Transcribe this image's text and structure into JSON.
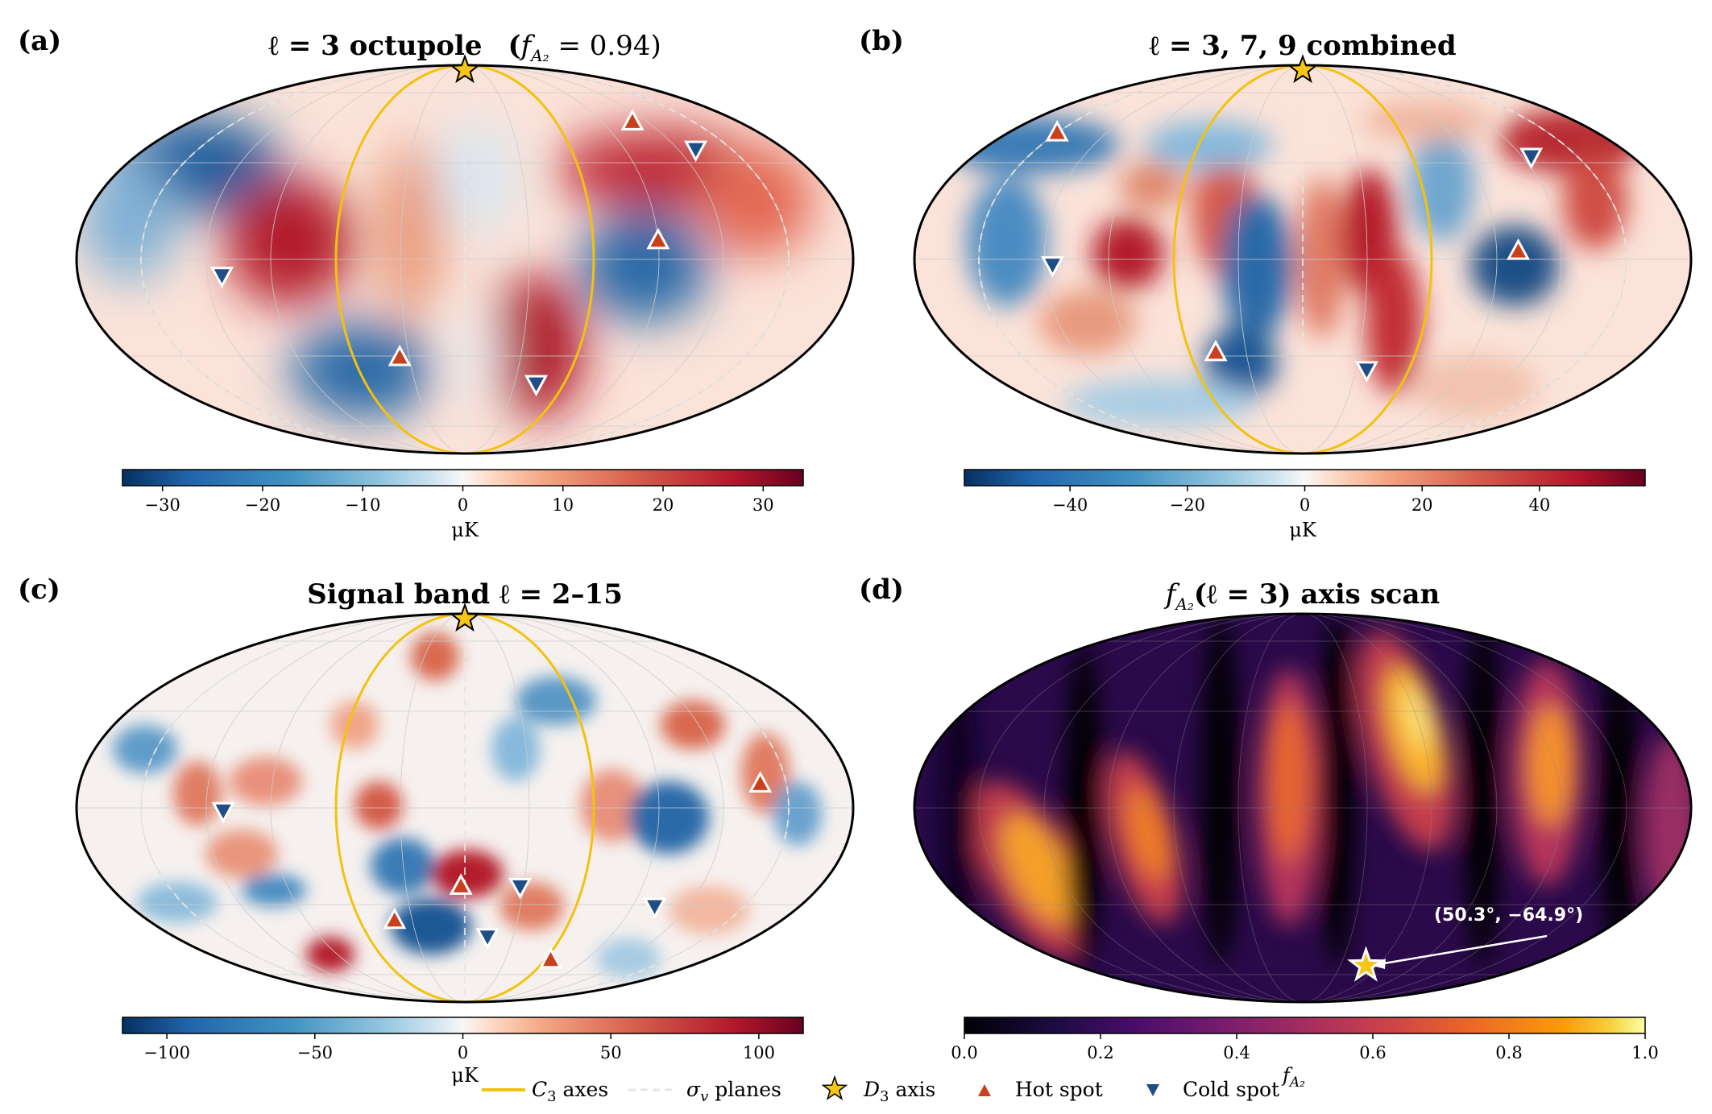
{
  "chart_data": [
    {
      "type": "heatmap",
      "panel": "(a)",
      "title": "ℓ = 3 octupole   (f_{A₂} = 0.94)",
      "title_parts": {
        "main": "ℓ = 3 octupole",
        "paren": "(",
        "f": "f",
        "sub": "A₂",
        "eq": " = 0.94)"
      },
      "projection": "mollweide",
      "colormap": "RdBu_r",
      "vmin": -34,
      "vmax": 34,
      "colorbar_ticks": [
        "−30",
        "−20",
        "−10",
        "0",
        "10",
        "20",
        "30"
      ],
      "colorbar_tick_values": [
        -30,
        -20,
        -10,
        0,
        10,
        20,
        30
      ],
      "colorbar_label": "μK",
      "hot_spots": [
        {
          "lon": 110,
          "lat": 55
        },
        {
          "lon": 90,
          "lat": 7
        },
        {
          "lon": -35,
          "lat": -38
        }
      ],
      "cold_spots": [
        {
          "lon": 130,
          "lat": 43
        },
        {
          "lon": -113,
          "lat": -6
        },
        {
          "lon": 43,
          "lat": -49
        }
      ]
    },
    {
      "type": "heatmap",
      "panel": "(b)",
      "title": "ℓ = 3, 7, 9 combined",
      "projection": "mollweide",
      "colormap": "RdBu_r",
      "vmin": -58,
      "vmax": 58,
      "colorbar_ticks": [
        "−40",
        "−20",
        "0",
        "20",
        "40"
      ],
      "colorbar_tick_values": [
        -40,
        -20,
        0,
        20,
        40
      ],
      "colorbar_label": "μK",
      "hot_spots": [
        {
          "lon": -150,
          "lat": 50
        },
        {
          "lon": 100,
          "lat": 3
        },
        {
          "lon": -46,
          "lat": -36
        }
      ],
      "cold_spots": [
        {
          "lon": 125,
          "lat": 40
        },
        {
          "lon": -116,
          "lat": -2
        },
        {
          "lon": 36,
          "lat": -43
        }
      ]
    },
    {
      "type": "heatmap",
      "panel": "(c)",
      "title": "Signal band ℓ = 2–15",
      "projection": "mollweide",
      "colormap": "RdBu_r",
      "vmin": -115,
      "vmax": 115,
      "colorbar_ticks": [
        "−100",
        "−50",
        "0",
        "50",
        "100"
      ],
      "colorbar_tick_values": [
        -100,
        -50,
        0,
        50,
        100
      ],
      "colorbar_label": "μK",
      "hot_spots": [
        {
          "lon": 138,
          "lat": 9
        },
        {
          "lon": -2,
          "lat": -30
        },
        {
          "lon": -40,
          "lat": -44
        },
        {
          "lon": 64,
          "lat": -62
        }
      ],
      "cold_spots": [
        {
          "lon": -112,
          "lat": -1
        },
        {
          "lon": 102,
          "lat": -38
        },
        {
          "lon": 28,
          "lat": -30
        },
        {
          "lon": 14,
          "lat": -51
        }
      ]
    },
    {
      "type": "heatmap",
      "panel": "(d)",
      "title": "f_{A₂}(ℓ = 3) axis scan",
      "title_parts": {
        "f": "f",
        "sub": "A₂",
        "rest": "(ℓ = 3) axis scan"
      },
      "projection": "mollweide",
      "colormap": "inferno",
      "vmin": 0.0,
      "vmax": 1.0,
      "colorbar_ticks": [
        "0.0",
        "0.2",
        "0.4",
        "0.6",
        "0.8",
        "1.0"
      ],
      "colorbar_tick_values": [
        0.0,
        0.2,
        0.4,
        0.6,
        0.8,
        1.0
      ],
      "colorbar_label": "f_{A₂}",
      "colorbar_label_parts": {
        "f": "f",
        "sub": "A₂"
      },
      "peak_axis": {
        "lon": 50.3,
        "lat": -64.9
      },
      "annotation": "(50.3°, −64.9°)"
    }
  ],
  "legend": [
    {
      "symbol": "line",
      "color": "#f2c20f",
      "label": "C₃ axes",
      "label_parts": {
        "c": "C",
        "sub": "3",
        "rest": " axes"
      }
    },
    {
      "symbol": "dashed-line",
      "color": "#e6e6e6",
      "label": "σ_v planes",
      "label_parts": {
        "s": "σ",
        "sub": "v",
        "rest": " planes"
      }
    },
    {
      "symbol": "star",
      "color": "#f5c518",
      "label": "D₃ axis",
      "label_parts": {
        "d": "D",
        "sub": "3",
        "rest": " axis"
      }
    },
    {
      "symbol": "triangle-up",
      "color": "#c8401c",
      "label": "Hot spot"
    },
    {
      "symbol": "triangle-down",
      "color": "#1f4e87",
      "label": "Cold spot"
    }
  ],
  "colors": {
    "c3_axes": "#f2c20f",
    "star_fill": "#f5c518",
    "hot_marker": "#c8401c",
    "cold_marker": "#1f4e87",
    "sigma_planes": "#e6e6e6"
  }
}
